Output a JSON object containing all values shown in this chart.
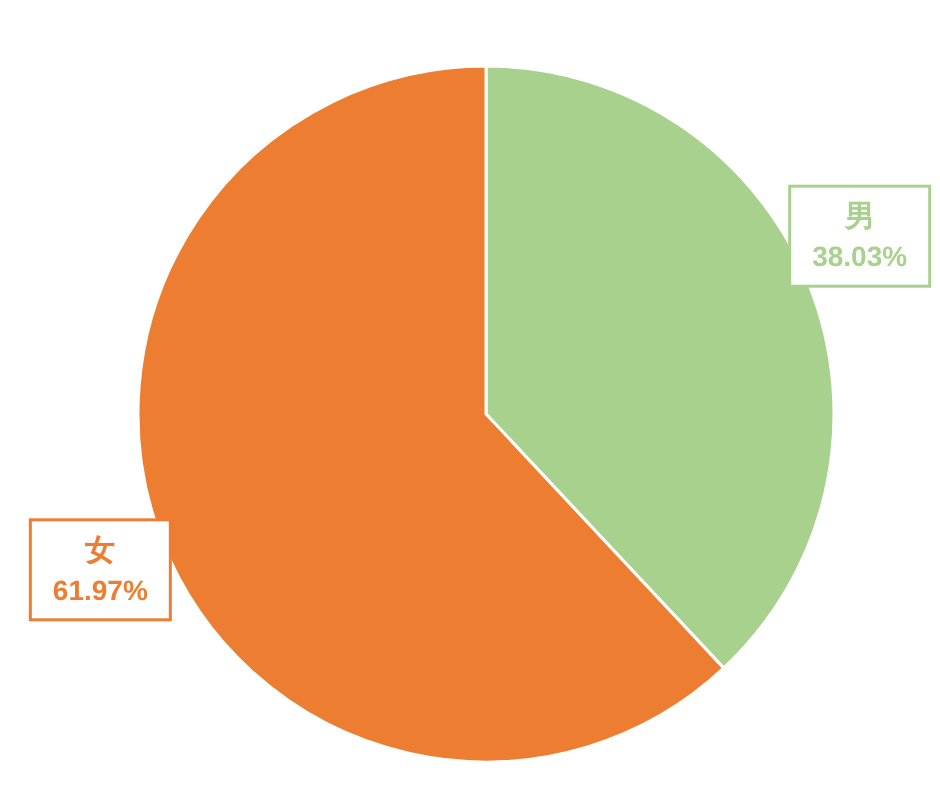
{
  "chart_data": {
    "type": "pie",
    "categories": [
      "男",
      "女"
    ],
    "values": [
      38.03,
      61.97
    ],
    "colors": [
      "#a9d18e",
      "#ed7d31"
    ],
    "value_labels": [
      "38.03%",
      "61.97%"
    ]
  }
}
